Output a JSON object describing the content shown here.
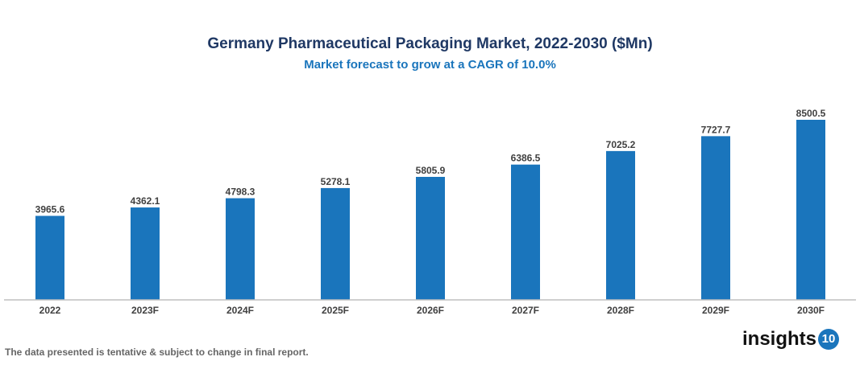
{
  "chart_data": {
    "type": "bar",
    "title": "Germany Pharmaceutical Packaging Market, 2022-2030 ($Mn)",
    "subtitle": "Market forecast to grow at a CAGR of 10.0%",
    "categories": [
      "2022",
      "2023F",
      "2024F",
      "2025F",
      "2026F",
      "2027F",
      "2028F",
      "2029F",
      "2030F"
    ],
    "values": [
      3965.6,
      4362.1,
      4798.3,
      5278.1,
      5805.9,
      6386.5,
      7025.2,
      7727.7,
      8500.5
    ],
    "ylim": [
      0,
      8500.5
    ],
    "grid": false,
    "bar_color": "#1a75bc",
    "xlabel": "",
    "ylabel": ""
  },
  "footer": {
    "note": "The data presented is tentative & subject to change in final report."
  },
  "logo": {
    "text": "insights",
    "badge": "10"
  }
}
